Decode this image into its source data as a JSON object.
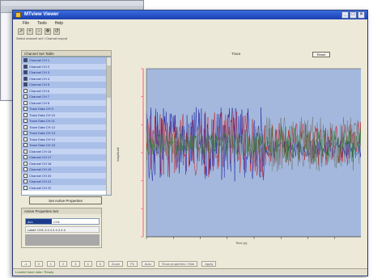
{
  "window": {
    "title": "MTview Viewer",
    "controls": [
      "_",
      "□",
      "×"
    ]
  },
  "menu": [
    "File",
    "Tools",
    "Help"
  ],
  "toolbar": [
    "cursor-icon",
    "zoom-in-icon",
    "zoom-out-icon",
    "pan-icon",
    "reset-icon"
  ],
  "path_text": "Select channel set / Channel export",
  "channel_panel": {
    "header": "Channel Set Table",
    "items": [
      {
        "label": "Channel CH 1",
        "checked": true
      },
      {
        "label": "Channel CH 2",
        "checked": true
      },
      {
        "label": "Channel CH 3",
        "checked": true
      },
      {
        "label": "Channel CH 4",
        "checked": true
      },
      {
        "label": "Channel CH 5",
        "checked": true
      },
      {
        "label": "Channel CH 6",
        "checked": false
      },
      {
        "label": "Channel CH 7",
        "checked": false
      },
      {
        "label": "Channel CH 8",
        "checked": false
      },
      {
        "label": "Trace Data CH 9",
        "checked": false
      },
      {
        "label": "Trace Data CH 10",
        "checked": false
      },
      {
        "label": "Trace Data CH 11",
        "checked": false
      },
      {
        "label": "Trace Data CH 12",
        "checked": false
      },
      {
        "label": "Trace Data CH 13",
        "checked": false
      },
      {
        "label": "Trace Data CH 14",
        "checked": false
      },
      {
        "label": "Trace Data CH 15",
        "checked": false
      },
      {
        "label": "Channel CH 16",
        "checked": false
      },
      {
        "label": "Channel CH 17",
        "checked": false
      },
      {
        "label": "Channel CH 18",
        "checked": false
      },
      {
        "label": "Channel CH 19",
        "checked": false
      },
      {
        "label": "Channel CH 20",
        "checked": false
      },
      {
        "label": "Channel CH 21",
        "checked": false
      },
      {
        "label": "Channel CH 22",
        "checked": false
      }
    ]
  },
  "select_button": "Set Active Properties",
  "selection_group": {
    "title": "Active Properties Set",
    "selected": "ALL",
    "rest": "CH1",
    "row": "Label: CH1 2:4 4 4 4 4 4 4"
  },
  "plot": {
    "title": "Trace",
    "button": "Reset",
    "xlabel": "Time (s)",
    "ylabel": "Amplitude"
  },
  "chart_data": {
    "type": "line",
    "xlabel": "Time (s)",
    "ylabel": "Amplitude",
    "series": [
      {
        "color": "#cc1111",
        "amplitude_early": 0.9,
        "amplitude_late": 0.6
      },
      {
        "color": "#1a1aa0",
        "amplitude_early": 1.0,
        "amplitude_late": 0.25
      },
      {
        "color": "#707070",
        "amplitude_early": 0.5,
        "amplitude_late": 0.75
      },
      {
        "color": "#2a7a2a",
        "amplitude_early": 0.3,
        "amplitude_late": 0.5
      }
    ],
    "transition_fraction": 0.55
  },
  "bottom_bar": [
    "-1",
    "0",
    "1",
    "2",
    "3",
    "4",
    "5",
    "Zoom",
    "Fit",
    "Auto",
    "Show properties / Hide",
    "Apply"
  ],
  "status": "Loaded trace data / Ready"
}
